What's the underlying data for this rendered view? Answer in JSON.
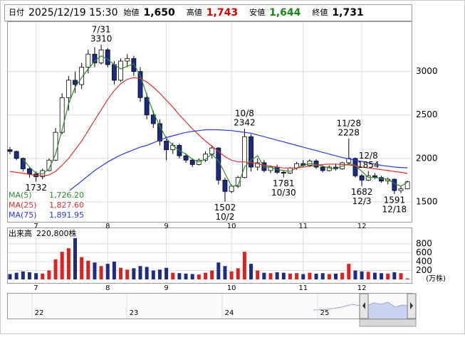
{
  "header": {
    "date_label": "日付",
    "date": "2025/12/19 15:30",
    "fields": [
      {
        "label": "始値",
        "value": "1,650",
        "color": "#000000"
      },
      {
        "label": "高値",
        "value": "1,743",
        "color": "#d40000"
      },
      {
        "label": "安値",
        "value": "1,644",
        "color": "#138a13"
      },
      {
        "label": "終値",
        "value": "1,731",
        "color": "#000000"
      }
    ]
  },
  "chart_data": {
    "type": "candlestick",
    "categories": [
      null,
      null,
      null,
      null,
      "7",
      null,
      null,
      null,
      null,
      null,
      null,
      null,
      null,
      null,
      null,
      "8",
      null,
      null,
      null,
      null,
      null,
      null,
      null,
      null,
      "9",
      null,
      null,
      null,
      null,
      null,
      null,
      null,
      null,
      null,
      "10",
      null,
      null,
      null,
      null,
      null,
      null,
      null,
      null,
      null,
      null,
      "11",
      null,
      null,
      null,
      null,
      null,
      null,
      null,
      null,
      "12",
      null,
      null,
      null,
      null,
      null,
      null,
      null
    ],
    "open": [
      2100,
      2080,
      2000,
      1880,
      1820,
      1790,
      1860,
      1980,
      2300,
      2700,
      2900,
      2850,
      3050,
      3200,
      3100,
      3250,
      3080,
      2900,
      3120,
      3150,
      3000,
      2700,
      2500,
      2400,
      2200,
      2100,
      2150,
      2030,
      1980,
      1930,
      1980,
      2050,
      2120,
      1750,
      1620,
      1680,
      1780,
      2250,
      1900,
      1950,
      1860,
      1900,
      1840,
      1830,
      1890,
      1940,
      1920,
      1970,
      1900,
      1860,
      1900,
      1880,
      1950,
      2000,
      1800,
      1750,
      1800,
      1780,
      1740,
      1760,
      1630,
      1650
    ],
    "high": [
      2130,
      2090,
      2010,
      1900,
      1850,
      1880,
      2000,
      2350,
      2750,
      2950,
      3000,
      3100,
      3250,
      3280,
      3310,
      3270,
      3120,
      3150,
      3200,
      3180,
      3050,
      2750,
      2550,
      2450,
      2250,
      2180,
      2170,
      2060,
      2000,
      2000,
      2080,
      2150,
      2130,
      1780,
      1700,
      1800,
      2342,
      2280,
      2000,
      1980,
      1920,
      1930,
      1860,
      1900,
      1960,
      1980,
      1990,
      1990,
      1920,
      1920,
      1940,
      1960,
      2228,
      2010,
      1820,
      1854,
      1830,
      1800,
      1780,
      1770,
      1680,
      1743
    ],
    "low": [
      2050,
      1980,
      1850,
      1780,
      1732,
      1760,
      1850,
      1970,
      2280,
      2550,
      2750,
      2800,
      2980,
      3050,
      3080,
      3050,
      2850,
      2880,
      3050,
      2950,
      2650,
      2450,
      2350,
      2150,
      1980,
      2050,
      2000,
      1950,
      1900,
      1920,
      1960,
      2000,
      1700,
      1502,
      1600,
      1660,
      1770,
      1850,
      1860,
      1840,
      1830,
      1820,
      1781,
      1820,
      1870,
      1900,
      1900,
      1880,
      1840,
      1850,
      1860,
      1870,
      1930,
      1780,
      1682,
      1740,
      1760,
      1720,
      1700,
      1591,
      1600,
      1644
    ],
    "close": [
      2080,
      2000,
      1880,
      1820,
      1790,
      1860,
      1980,
      2300,
      2700,
      2900,
      2850,
      3050,
      3200,
      3100,
      3250,
      3080,
      2900,
      3120,
      3150,
      3000,
      2700,
      2500,
      2400,
      2200,
      2100,
      2150,
      2030,
      1980,
      1930,
      1980,
      2050,
      2120,
      1750,
      1620,
      1680,
      1780,
      2250,
      1900,
      1950,
      1860,
      1900,
      1840,
      1830,
      1890,
      1940,
      1920,
      1970,
      1900,
      1860,
      1900,
      1880,
      1950,
      2000,
      1800,
      1750,
      1800,
      1780,
      1740,
      1760,
      1630,
      1650,
      1731
    ],
    "ylim": [
      1270,
      3570
    ],
    "yticks": [
      1500,
      2000,
      2500,
      3000
    ],
    "grid": true,
    "up_color": "#ffffff",
    "down_color": "#1c2a88",
    "series": [
      {
        "name": "MA(5)",
        "color": "#2e8b2e",
        "legend_value": "1,726.20",
        "values": [
          null,
          null,
          1990,
          1900,
          1830,
          1820,
          1880,
          2050,
          2330,
          2630,
          2820,
          2930,
          3030,
          3120,
          3180,
          3140,
          3080,
          3030,
          3060,
          3090,
          2950,
          2730,
          2530,
          2370,
          2230,
          2150,
          2090,
          2050,
          1990,
          1960,
          1990,
          2050,
          1970,
          1830,
          1680,
          1690,
          1900,
          1980,
          2030,
          1900,
          1900,
          1870,
          1860,
          1850,
          1890,
          1920,
          1940,
          1930,
          1910,
          1890,
          1880,
          1910,
          1940,
          1920,
          1850,
          1780,
          1780,
          1770,
          1760,
          1710,
          1680,
          1726.2
        ]
      },
      {
        "name": "MA(25)",
        "color": "#e03030",
        "legend_value": "1,827.60",
        "values": [
          1850,
          1840,
          1830,
          1815,
          1805,
          1800,
          1810,
          1850,
          1920,
          2000,
          2100,
          2200,
          2320,
          2440,
          2560,
          2680,
          2780,
          2860,
          2910,
          2930,
          2920,
          2880,
          2820,
          2750,
          2670,
          2590,
          2500,
          2420,
          2340,
          2270,
          2200,
          2140,
          2080,
          2020,
          1980,
          1960,
          1960,
          1950,
          1940,
          1920,
          1910,
          1900,
          1890,
          1890,
          1890,
          1900,
          1910,
          1920,
          1930,
          1935,
          1935,
          1930,
          1925,
          1915,
          1900,
          1890,
          1880,
          1870,
          1860,
          1850,
          1840,
          1827.6
        ]
      },
      {
        "name": "MA(75)",
        "color": "#2a3ae0",
        "legend_value": "1,891.95",
        "values": [
          null,
          null,
          null,
          null,
          null,
          null,
          null,
          null,
          null,
          1620,
          1680,
          1740,
          1800,
          1860,
          1910,
          1960,
          2000,
          2040,
          2070,
          2100,
          2130,
          2150,
          2180,
          2210,
          2240,
          2260,
          2280,
          2300,
          2310,
          2320,
          2330,
          2330,
          2330,
          2325,
          2320,
          2310,
          2300,
          2290,
          2270,
          2250,
          2230,
          2210,
          2190,
          2170,
          2150,
          2130,
          2110,
          2090,
          2070,
          2050,
          2030,
          2010,
          1995,
          1980,
          1965,
          1950,
          1935,
          1920,
          1910,
          1900,
          1895,
          1891.95
        ]
      }
    ],
    "annotations": [
      {
        "date": "7/31",
        "value": 3310
      },
      {
        "value": 1732
      },
      {
        "date": "10/2",
        "value": 1502
      },
      {
        "date": "10/8",
        "value": 2342
      },
      {
        "date": "10/30",
        "value": 1781
      },
      {
        "date": "11/28",
        "value": 2228
      },
      {
        "date": "12/3",
        "value": 1682
      },
      {
        "date": "12/8",
        "value": 1854
      },
      {
        "date": "12/18",
        "value": 1591
      }
    ],
    "volume": {
      "title": "出来高",
      "latest": "220,800株",
      "unit": "(万株)",
      "ylim": [
        -80,
        1150
      ],
      "yticks": [
        200,
        400,
        600,
        800
      ],
      "values": [
        120,
        150,
        180,
        160,
        140,
        130,
        200,
        450,
        620,
        700,
        1000,
        500,
        420,
        380,
        300,
        350,
        400,
        260,
        220,
        250,
        300,
        280,
        200,
        220,
        260,
        150,
        140,
        130,
        120,
        110,
        150,
        200,
        380,
        300,
        180,
        250,
        620,
        350,
        200,
        150,
        140,
        160,
        150,
        130,
        140,
        120,
        150,
        130,
        140,
        120,
        130,
        150,
        350,
        200,
        180,
        170,
        150,
        140,
        130,
        160,
        140,
        22.08
      ]
    }
  },
  "navigator": {
    "labels": [
      "22",
      "23",
      "24",
      "25"
    ]
  }
}
